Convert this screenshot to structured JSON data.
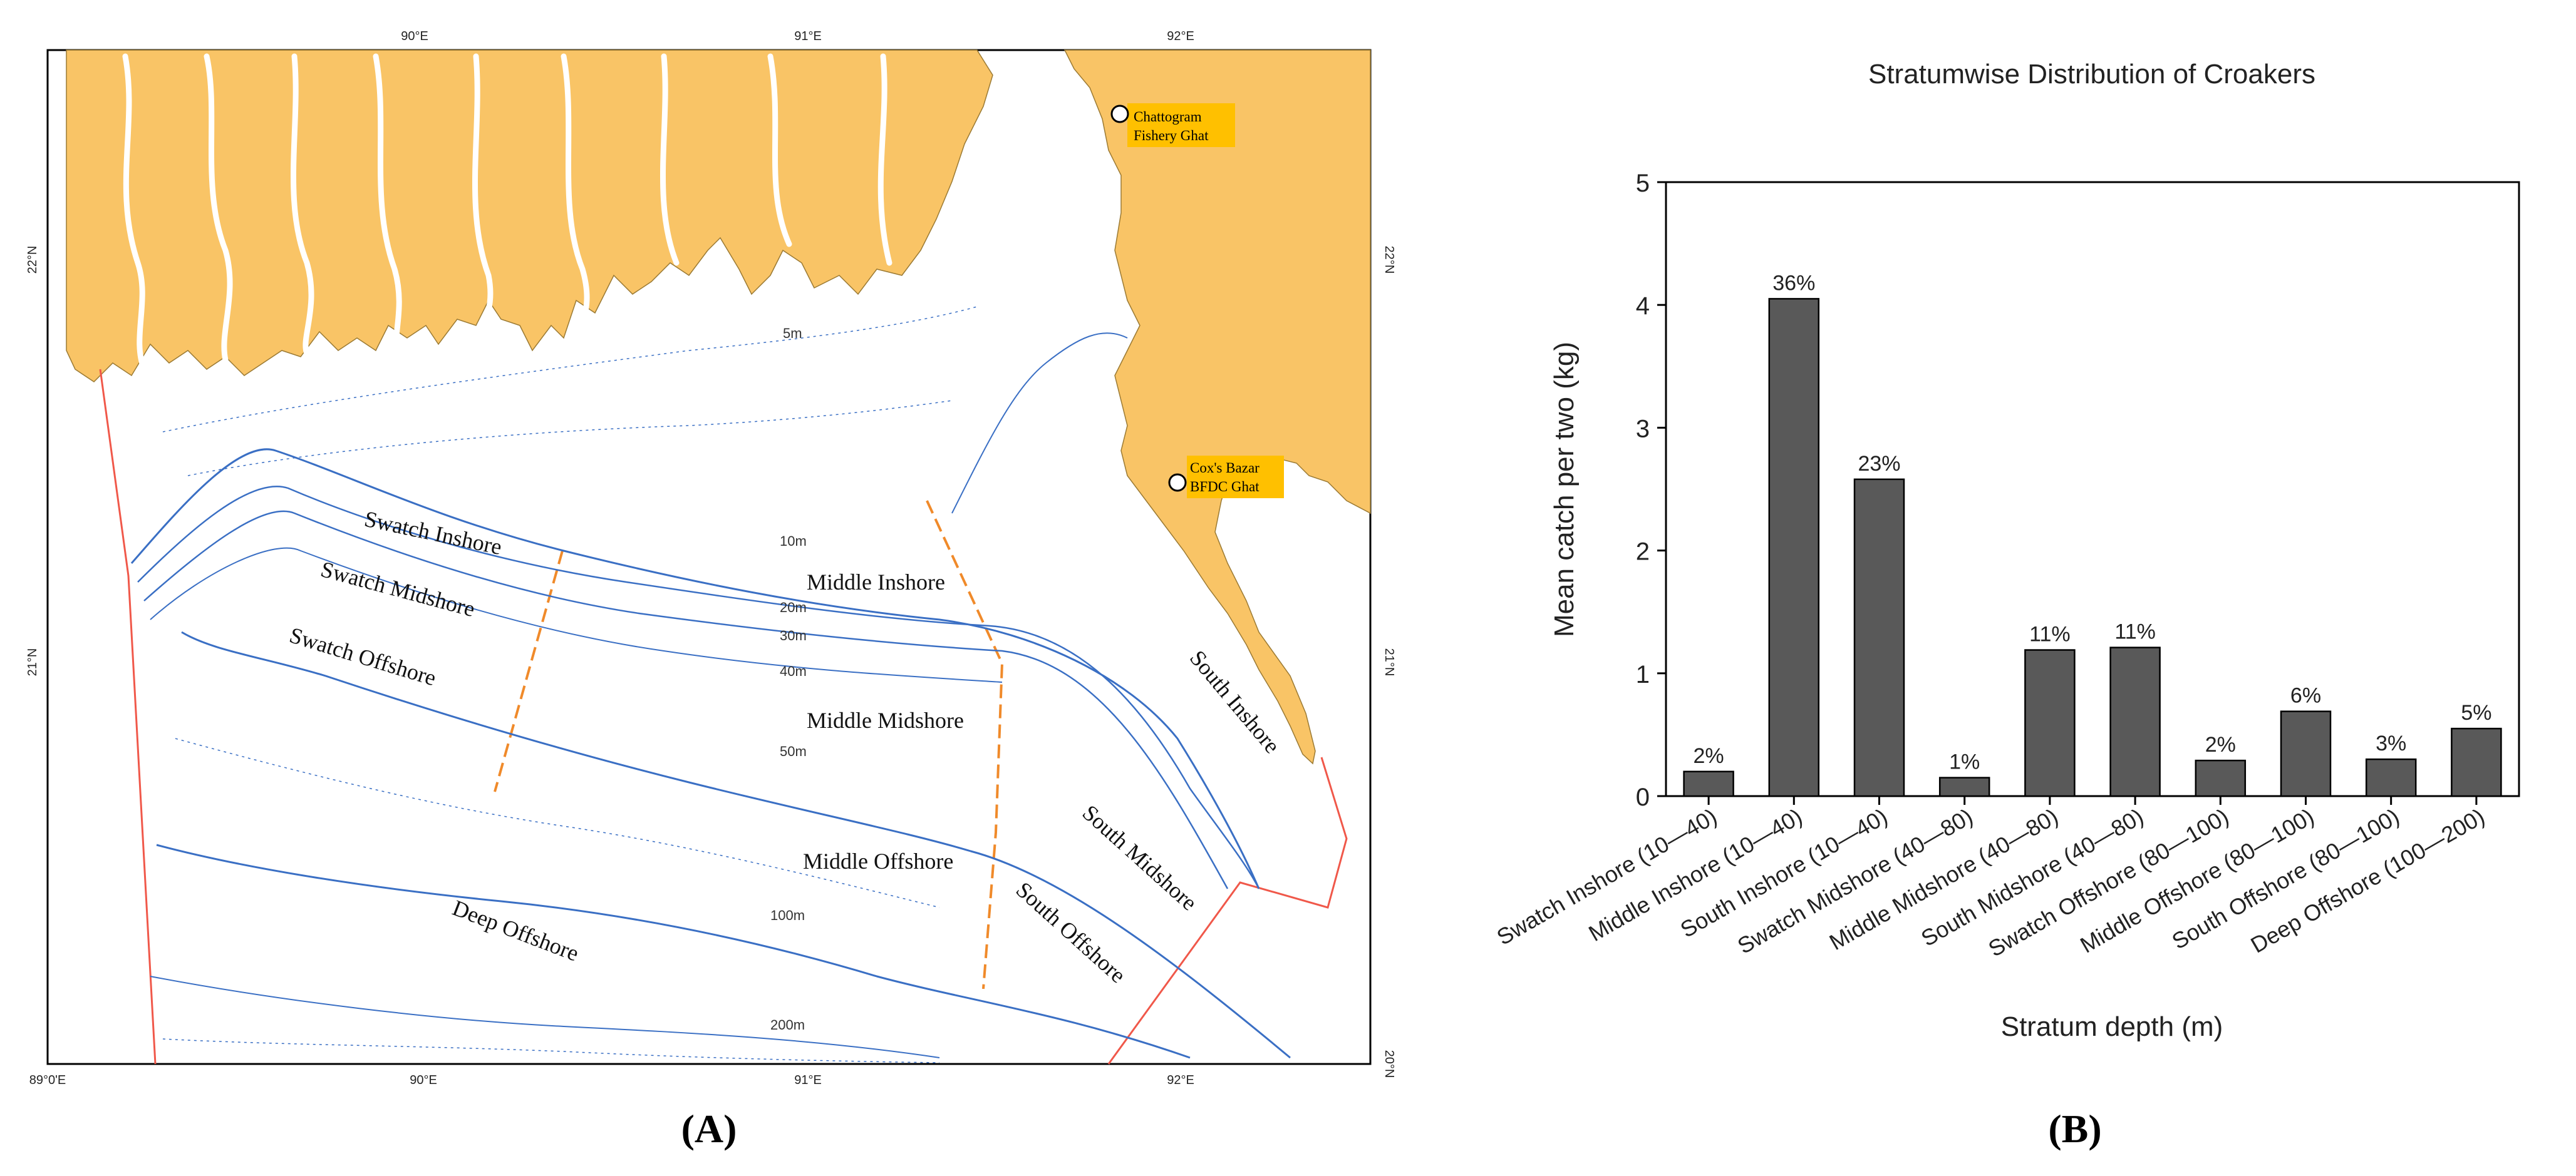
{
  "panel_a": {
    "label": "(A)",
    "lon_labels_top": [
      "90°E",
      "91°E",
      "92°E"
    ],
    "lon_labels_bottom": [
      "89°0'E",
      "90°E",
      "91°E",
      "92°E"
    ],
    "lat_labels": [
      "22°N",
      "21°N",
      "20°N"
    ],
    "depth_labels": [
      "5m",
      "10m",
      "20m",
      "30m",
      "40m",
      "50m",
      "100m",
      "200m"
    ],
    "ports": [
      {
        "name_line1": "Chattogram",
        "name_line2": "Fishery Ghat"
      },
      {
        "name_line1": "Cox's Bazar",
        "name_line2": "BFDC Ghat"
      }
    ],
    "strata": [
      "Swatch Inshore",
      "Swatch Midshore",
      "Swatch Offshore",
      "Middle Inshore",
      "Middle Midshore",
      "Middle Offshore",
      "South Inshore",
      "South Midshore",
      "South Offshore",
      "Deep Offshore"
    ],
    "colors": {
      "land": "#F9C466",
      "sea": "#ffffff",
      "contour": "#3a6fc4",
      "boundary": "#f0584a",
      "divider": "#f08a2a",
      "label_box": "#FFC000"
    }
  },
  "panel_b": {
    "label": "(B)"
  },
  "chart_data": {
    "type": "bar",
    "title": "Stratumwise Distribution of Croakers",
    "xlabel": "Stratum depth (m)",
    "ylabel": "Mean catch per two (kg)",
    "ylim": [
      0,
      5
    ],
    "yticks": [
      "0",
      "1",
      "2",
      "3",
      "4",
      "5"
    ],
    "categories": [
      "Swatch Inshore (10—40)",
      "Middle Inshore (10—40)",
      "South Inshore (10—40)",
      "Swatch Midshore (40—80)",
      "Middle Midshore (40—80)",
      "South Midshore (40—80)",
      "Swatch Offshore (80—100)",
      "Middle Offshore (80—100)",
      "South Offshore (80—100)",
      "Deep Offshore (100—200)"
    ],
    "values": [
      0.2,
      4.05,
      2.58,
      0.15,
      1.19,
      1.21,
      0.29,
      0.69,
      0.3,
      0.55
    ],
    "data_labels": [
      "2%",
      "36%",
      "23%",
      "1%",
      "11%",
      "11%",
      "2%",
      "6%",
      "3%",
      "5%"
    ],
    "bar_color": "#595959",
    "grid": false,
    "legend": "none"
  }
}
